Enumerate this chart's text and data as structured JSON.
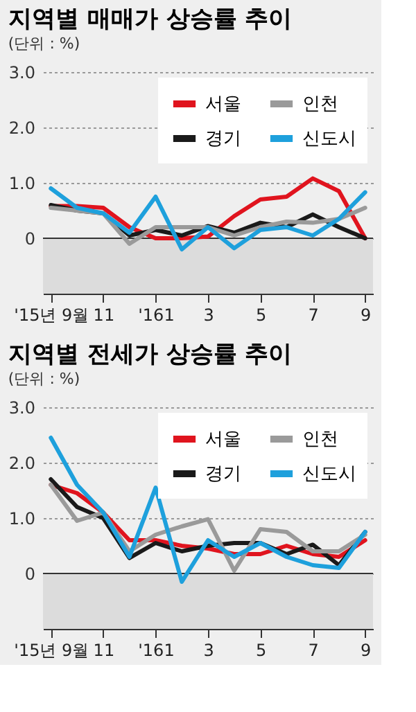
{
  "chart_data": [
    {
      "type": "line",
      "title": "지역별 매매가 상승률 추이",
      "subtitle": "(단위 : %)",
      "categories": [
        "'15년 9월",
        null,
        "11",
        null,
        "'161",
        null,
        "3",
        null,
        "5",
        null,
        "7",
        null,
        "9"
      ],
      "series": [
        {
          "name": "서울",
          "color": "#e0141e",
          "values": [
            0.58,
            0.58,
            0.55,
            0.2,
            0.0,
            0.0,
            0.03,
            0.4,
            0.7,
            0.75,
            1.08,
            0.85,
            0.0
          ]
        },
        {
          "name": "경기",
          "color": "#1a1a1a",
          "values": [
            0.6,
            0.5,
            0.45,
            0.05,
            0.15,
            0.05,
            0.22,
            0.1,
            0.28,
            0.2,
            0.43,
            0.2,
            0.0
          ]
        },
        {
          "name": "인천",
          "color": "#9a9a9a",
          "values": [
            0.55,
            0.5,
            0.45,
            -0.1,
            0.2,
            0.2,
            0.2,
            0.05,
            0.2,
            0.3,
            0.28,
            0.35,
            0.55
          ]
        },
        {
          "name": "신도시",
          "color": "#1ea0dc",
          "values": [
            0.9,
            0.55,
            0.45,
            0.1,
            0.75,
            -0.2,
            0.2,
            -0.18,
            0.15,
            0.2,
            0.05,
            0.35,
            0.83
          ]
        }
      ],
      "ylim": [
        -1.0,
        3.0
      ],
      "yticks": [
        0,
        {
          "value": 1,
          "label": "1.0"
        },
        {
          "value": 2,
          "label": "2.0"
        },
        {
          "value": 3,
          "label": "3.0"
        }
      ],
      "grid": "y",
      "legend": "top right",
      "line_style": "solid",
      "marker": "none",
      "bands": [
        {
          "axis": "y",
          "from": -1.0,
          "to": 0,
          "color": "#dcdcdc"
        }
      ],
      "ref_lines": [
        {
          "axis": "y",
          "value": 0,
          "color": "#333333",
          "line_style": "solid"
        }
      ]
    },
    {
      "type": "line",
      "title": "지역별 전세가 상승률 추이",
      "subtitle": "(단위 : %)",
      "categories": [
        "'15년 9월",
        null,
        "11",
        null,
        "'161",
        null,
        "3",
        null,
        "5",
        null,
        "7",
        null,
        "9"
      ],
      "series": [
        {
          "name": "서울",
          "color": "#e0141e",
          "values": [
            1.6,
            1.45,
            1.1,
            0.6,
            0.6,
            0.5,
            0.45,
            0.35,
            0.35,
            0.5,
            0.35,
            0.3,
            0.6
          ]
        },
        {
          "name": "경기",
          "color": "#1a1a1a",
          "values": [
            1.7,
            1.2,
            1.0,
            0.28,
            0.55,
            0.4,
            0.5,
            0.55,
            0.55,
            0.35,
            0.52,
            0.15,
            0.75
          ]
        },
        {
          "name": "인천",
          "color": "#9a9a9a",
          "values": [
            1.6,
            0.95,
            1.1,
            0.4,
            0.7,
            0.85,
            0.98,
            0.05,
            0.8,
            0.75,
            0.4,
            0.4,
            0.7
          ]
        },
        {
          "name": "신도시",
          "color": "#1ea0dc",
          "values": [
            2.45,
            1.6,
            1.1,
            0.3,
            1.55,
            -0.15,
            0.6,
            0.3,
            0.55,
            0.3,
            0.15,
            0.1,
            0.75
          ]
        }
      ],
      "ylim": [
        -1.0,
        3.0
      ],
      "yticks": [
        0,
        {
          "value": 1,
          "label": "1.0"
        },
        {
          "value": 2,
          "label": "2.0"
        },
        {
          "value": 3,
          "label": "3.0"
        }
      ],
      "grid": "y",
      "legend": "top right",
      "line_style": "solid",
      "marker": "none",
      "bands": [
        {
          "axis": "y",
          "from": -1.0,
          "to": 0,
          "color": "#dcdcdc"
        }
      ],
      "ref_lines": [
        {
          "axis": "y",
          "value": 0,
          "color": "#333333",
          "line_style": "solid"
        }
      ]
    }
  ]
}
